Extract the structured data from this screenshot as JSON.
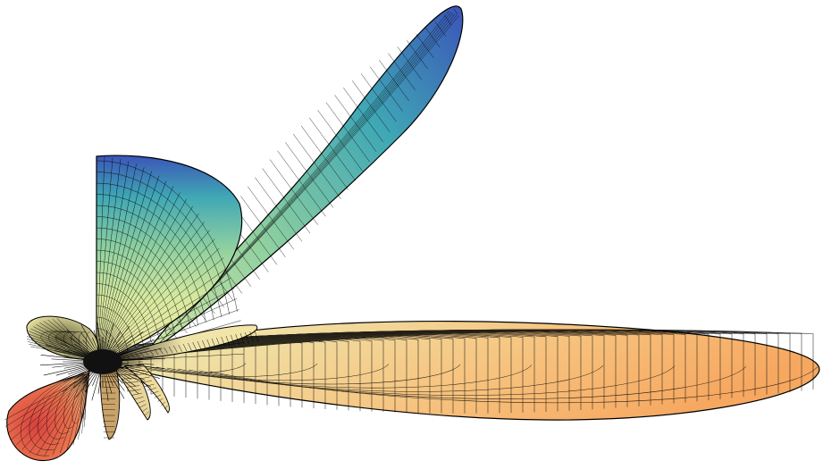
{
  "figure": {
    "title": "",
    "palette": {
      "blue": "#3b55b8",
      "teal": "#3fa7b5",
      "green": "#8fd0a0",
      "yellow": "#e9eaa2",
      "cream": "#f3e6a6",
      "orange": "#f6a861",
      "red": "#d8423f",
      "mesh": "#000000"
    },
    "lobes": [
      {
        "id": "main-lobe-right",
        "role": "main lobe",
        "colors": [
          "cream",
          "orange"
        ]
      },
      {
        "id": "upper-diagonal-lobe",
        "role": "major side lobe",
        "colors": [
          "green",
          "teal",
          "blue"
        ]
      },
      {
        "id": "vertical-quarter-lobe",
        "role": "cut-away quarter lobe",
        "colors": [
          "yellow",
          "green",
          "teal",
          "blue"
        ]
      },
      {
        "id": "lower-left-lobe",
        "role": "back lobe",
        "colors": [
          "orange",
          "red"
        ]
      },
      {
        "id": "upper-left-lobe",
        "role": "minor lobe",
        "colors": [
          "yellow"
        ]
      },
      {
        "id": "thin-middle-lobe",
        "role": "minor lobe",
        "colors": [
          "cream"
        ]
      },
      {
        "id": "small-bottom-lobes",
        "role": "minor lobes",
        "colors": [
          "cream",
          "orange"
        ]
      }
    ]
  }
}
